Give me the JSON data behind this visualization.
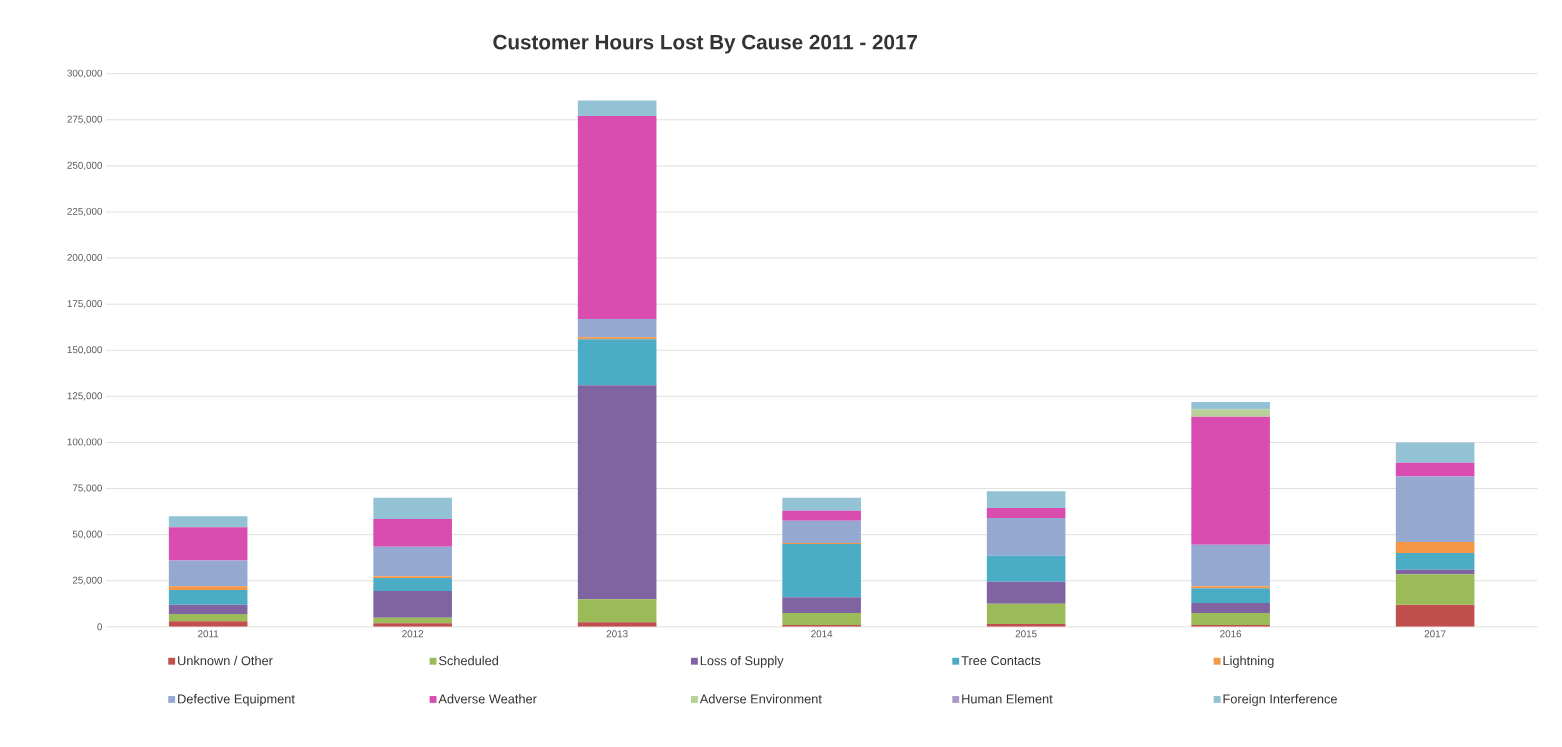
{
  "chart_data": {
    "type": "bar",
    "stacked": true,
    "title": "Customer Hours Lost By Cause 2011 - 2017",
    "categories": [
      "2011",
      "2012",
      "2013",
      "2014",
      "2015",
      "2016",
      "2017"
    ],
    "series": [
      {
        "name": "Unknown / Other",
        "color": "#c0504d",
        "values": [
          3000,
          2000,
          2500,
          1000,
          1500,
          1000,
          12000
        ]
      },
      {
        "name": "Scheduled",
        "color": "#9bbb59",
        "values": [
          4000,
          3000,
          12500,
          6500,
          11000,
          6500,
          16500
        ]
      },
      {
        "name": "Loss of Supply",
        "color": "#8064a2",
        "values": [
          5000,
          14500,
          116000,
          8500,
          12000,
          5500,
          2500
        ]
      },
      {
        "name": "Tree Contacts",
        "color": "#4bacc6",
        "values": [
          8000,
          7000,
          25000,
          29000,
          14000,
          8000,
          9000
        ]
      },
      {
        "name": "Lightning",
        "color": "#f79646",
        "values": [
          2000,
          1000,
          1000,
          500,
          0,
          1000,
          6000
        ]
      },
      {
        "name": "Defective Equipment",
        "color": "#95a9d0",
        "values": [
          14000,
          16000,
          10000,
          12000,
          20500,
          22500,
          35500
        ]
      },
      {
        "name": "Adverse Weather",
        "color": "#d94cb0",
        "values": [
          18000,
          15000,
          110000,
          5500,
          5500,
          69500,
          7500
        ]
      },
      {
        "name": "Adverse Environment",
        "color": "#b7d09a",
        "values": [
          0,
          0,
          0,
          0,
          0,
          4000,
          0
        ]
      },
      {
        "name": "Human Element",
        "color": "#a99bc3",
        "values": [
          0,
          0,
          0,
          0,
          0,
          0,
          0
        ]
      },
      {
        "name": "Foreign Interference",
        "color": "#92c2d4",
        "values": [
          6000,
          11500,
          8500,
          7000,
          9000,
          4000,
          11000
        ]
      }
    ],
    "ylim": [
      0,
      300000
    ],
    "yticks": [
      0,
      {
        "value": 25000,
        "label": "25,000"
      },
      {
        "value": 50000,
        "label": "50,000"
      },
      {
        "value": 75000,
        "label": "75,000"
      },
      {
        "value": 100000,
        "label": "100,000"
      },
      {
        "value": 125000,
        "label": "125,000"
      },
      {
        "value": 150000,
        "label": "150,000"
      },
      {
        "value": 175000,
        "label": "175,000"
      },
      {
        "value": 200000,
        "label": "200,000"
      },
      {
        "value": 225000,
        "label": "225,000"
      },
      {
        "value": 250000,
        "label": "250,000"
      },
      {
        "value": 275000,
        "label": "275,000"
      },
      {
        "value": 300000,
        "label": "300,000"
      }
    ],
    "grid": "y",
    "legend": "bottom"
  }
}
